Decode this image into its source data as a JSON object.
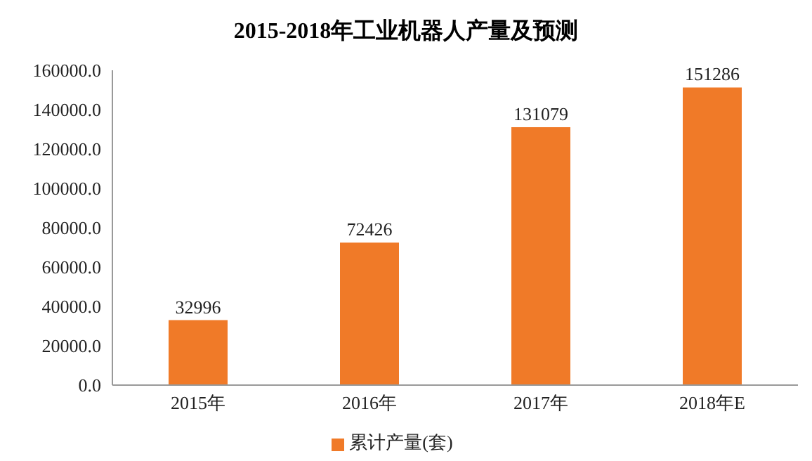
{
  "chart_data": {
    "type": "bar",
    "title": "2015-2018年工业机器人产量及预测",
    "categories": [
      "2015年",
      "2016年",
      "2017年",
      "2018年E"
    ],
    "series": [
      {
        "name": "累计产量(套)",
        "color": "#f07a28",
        "values": [
          32996,
          72426,
          131079,
          151286
        ]
      }
    ],
    "ylim": [
      0,
      160000
    ],
    "yticks": [
      {
        "value": 0,
        "label": "0.0"
      },
      {
        "value": 20000,
        "label": "20000.0"
      },
      {
        "value": 40000,
        "label": "40000.0"
      },
      {
        "value": 60000,
        "label": "60000.0"
      },
      {
        "value": 80000,
        "label": "80000.0"
      },
      {
        "value": 100000,
        "label": "100000.0"
      },
      {
        "value": 120000,
        "label": "120000.0"
      },
      {
        "value": 140000,
        "label": "140000.0"
      },
      {
        "value": 160000,
        "label": "160000.0"
      }
    ],
    "data_labels": true,
    "legend": "bottom",
    "grid": false
  }
}
